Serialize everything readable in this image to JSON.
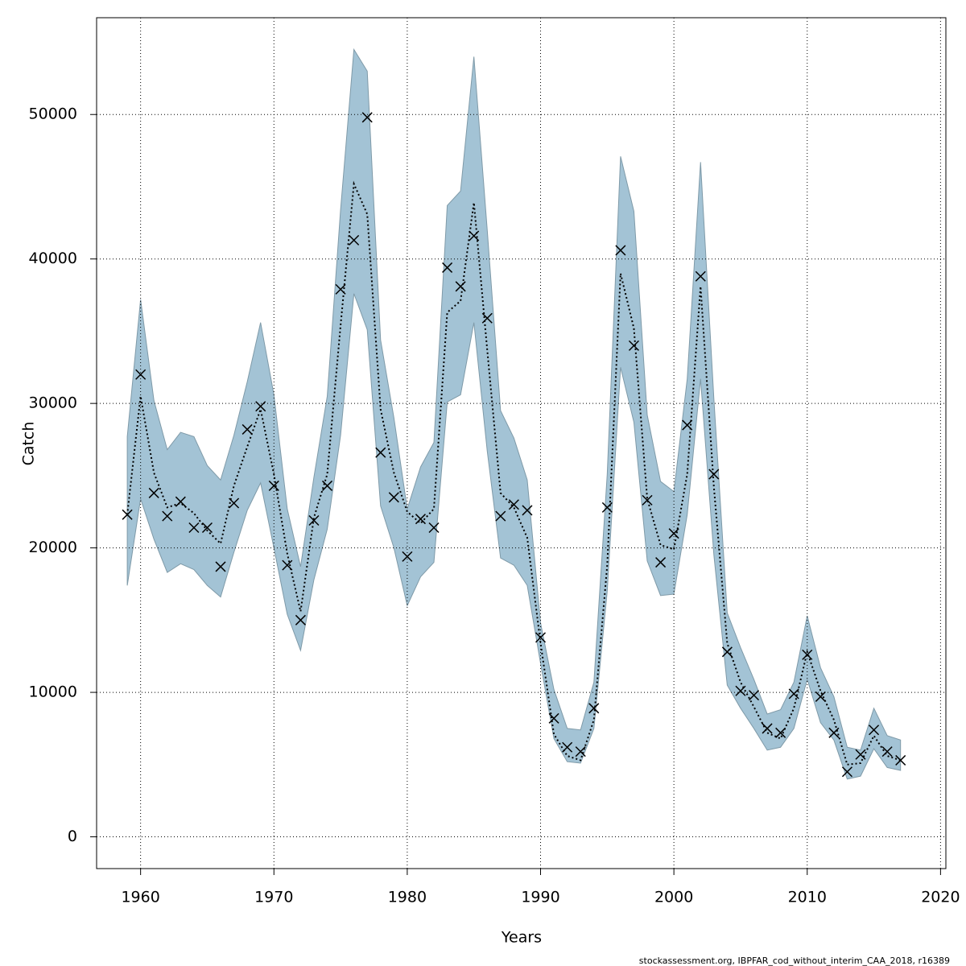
{
  "chart_data": {
    "type": "line",
    "x_label": "Years",
    "y_label": "Catch",
    "footer": "stockassessment.org, IBPFAR_cod_without_interim_CAA_2018, r16389",
    "x": [
      1959,
      1960,
      1961,
      1962,
      1963,
      1964,
      1965,
      1966,
      1967,
      1968,
      1969,
      1970,
      1971,
      1972,
      1973,
      1974,
      1975,
      1976,
      1977,
      1978,
      1979,
      1980,
      1981,
      1982,
      1983,
      1984,
      1985,
      1986,
      1987,
      1988,
      1989,
      1990,
      1991,
      1992,
      1993,
      1994,
      1995,
      1996,
      1997,
      1998,
      1999,
      2000,
      2001,
      2002,
      2003,
      2004,
      2005,
      2006,
      2007,
      2008,
      2009,
      2010,
      2011,
      2012,
      2013,
      2014,
      2015,
      2016,
      2017
    ],
    "band": {
      "color": "#a3c3d5",
      "upper": [
        27700,
        37200,
        30200,
        26800,
        28000,
        27700,
        25700,
        24700,
        27800,
        31500,
        35600,
        30600,
        22700,
        18700,
        24900,
        30500,
        43400,
        54500,
        53000,
        34400,
        29000,
        22700,
        25600,
        27300,
        43700,
        44700,
        54000,
        42000,
        29500,
        27600,
        24700,
        14800,
        10200,
        7500,
        7400,
        10700,
        25100,
        47100,
        43300,
        29200,
        24600,
        23900,
        31700,
        46700,
        30300,
        15500,
        13100,
        10900,
        8500,
        8800,
        10700,
        15300,
        11700,
        9700,
        6200,
        6000,
        8900,
        7000,
        6700
      ],
      "lower": [
        17400,
        23400,
        20600,
        18300,
        18900,
        18500,
        17400,
        16600,
        19700,
        22600,
        24500,
        20000,
        15400,
        12900,
        17800,
        21300,
        27800,
        37600,
        35100,
        22900,
        20000,
        16000,
        18000,
        19000,
        30100,
        30600,
        35600,
        26700,
        19300,
        18800,
        17400,
        12000,
        6800,
        5200,
        5100,
        7500,
        17000,
        32500,
        28700,
        19100,
        16700,
        16800,
        22300,
        31700,
        19500,
        10500,
        8900,
        7500,
        6000,
        6200,
        7500,
        10900,
        7900,
        6700,
        4000,
        4200,
        6100,
        4800,
        4600
      ]
    },
    "line": {
      "color": "#000000",
      "values": [
        22300,
        30500,
        25200,
        22800,
        23100,
        22400,
        21200,
        20300,
        24300,
        27000,
        29600,
        25100,
        19600,
        15600,
        22100,
        25100,
        35400,
        45200,
        43100,
        29600,
        25200,
        22500,
        21700,
        22700,
        36300,
        37100,
        43900,
        33700,
        23800,
        22800,
        20700,
        13400,
        7100,
        5600,
        5300,
        8100,
        18800,
        39000,
        35200,
        23400,
        20200,
        19900,
        25100,
        38100,
        24200,
        13400,
        10700,
        9000,
        7200,
        6800,
        8900,
        12800,
        10100,
        8100,
        5000,
        5100,
        7000,
        5600,
        5300
      ]
    },
    "points": {
      "color": "#000000",
      "values": [
        22300,
        32000,
        23800,
        22200,
        23200,
        21400,
        21400,
        18700,
        23100,
        28200,
        29800,
        24300,
        18800,
        15000,
        21900,
        24300,
        37900,
        41300,
        49800,
        26600,
        23500,
        19400,
        22000,
        21400,
        39400,
        38100,
        41600,
        35900,
        22200,
        23000,
        22600,
        13800,
        8200,
        6200,
        5900,
        8900,
        22800,
        40600,
        34000,
        23300,
        19000,
        21000,
        28500,
        38800,
        25100,
        12800,
        10100,
        9800,
        7500,
        7200,
        9900,
        12600,
        9700,
        7200,
        4500,
        5700,
        7400,
        5900,
        5300
      ]
    },
    "xlim": [
      1956.7,
      2020.4
    ],
    "ylim": [
      -2200,
      56700
    ],
    "xticks": [
      1960,
      1970,
      1980,
      1990,
      2000,
      2010,
      2020
    ],
    "yticks": [
      0,
      10000,
      20000,
      30000,
      40000,
      50000
    ],
    "grid": true
  }
}
